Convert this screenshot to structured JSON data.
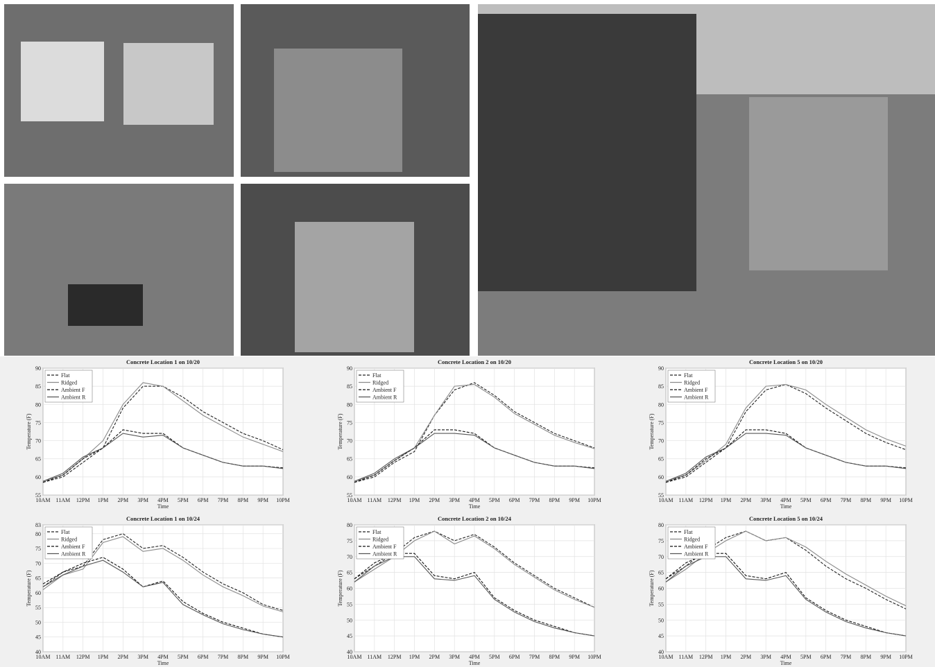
{
  "chart_data": [
    {
      "type": "line",
      "title": "Concrete Location 1 on 10/20",
      "xlabel": "Time",
      "ylabel": "Temperature (F)",
      "grid": true,
      "legend": "upper-left",
      "x": [
        10,
        11,
        12,
        13,
        14,
        15,
        16,
        17,
        18,
        19,
        20,
        21,
        22
      ],
      "xlim": [
        10,
        22
      ],
      "xticks": [
        {
          "value": 10,
          "label": "10AM"
        },
        {
          "value": 11,
          "label": "11AM"
        },
        {
          "value": 12,
          "label": "12PM"
        },
        {
          "value": 13,
          "label": "1PM"
        },
        {
          "value": 14,
          "label": "2PM"
        },
        {
          "value": 15,
          "label": "3PM"
        },
        {
          "value": 16,
          "label": "4PM"
        },
        {
          "value": 17,
          "label": "5PM"
        },
        {
          "value": 18,
          "label": "6PM"
        },
        {
          "value": 19,
          "label": "7PM"
        },
        {
          "value": 20,
          "label": "8PM"
        },
        {
          "value": 21,
          "label": "9PM"
        },
        {
          "value": 22,
          "label": "10PM"
        }
      ],
      "ylim": [
        55,
        90
      ],
      "yticks": [
        55,
        60,
        65,
        70,
        75,
        80,
        85,
        90
      ],
      "series": [
        {
          "name": "Flat",
          "color": "#222222",
          "dash": true,
          "values": [
            58.5,
            60,
            64,
            68,
            79,
            85,
            85,
            82,
            78,
            75,
            72,
            70,
            67.5
          ]
        },
        {
          "name": "Ridged",
          "color": "#8a8a8a",
          "dash": false,
          "values": [
            58.8,
            60.5,
            65,
            70,
            80,
            86,
            85,
            81,
            77,
            74,
            71,
            69,
            67
          ]
        },
        {
          "name": "Ambient F",
          "color": "#111111",
          "dash": true,
          "values": [
            58.5,
            60.5,
            65,
            68,
            73,
            72,
            72,
            68,
            66,
            64,
            63,
            63,
            62.5
          ]
        },
        {
          "name": "Ambient R",
          "color": "#555555",
          "dash": false,
          "values": [
            58.8,
            61,
            65.5,
            68,
            72,
            71,
            71.5,
            68,
            66,
            64,
            63,
            63,
            62.3
          ]
        }
      ]
    },
    {
      "type": "line",
      "title": "Concrete Location 2 on 10/20",
      "xlabel": "Time",
      "ylabel": "Temperature (F)",
      "grid": true,
      "legend": "upper-left",
      "x": [
        10,
        11,
        12,
        13,
        14,
        15,
        16,
        17,
        18,
        19,
        20,
        21,
        22
      ],
      "xlim": [
        10,
        22
      ],
      "xticks": [
        {
          "value": 10,
          "label": "10AM"
        },
        {
          "value": 11,
          "label": "11AM"
        },
        {
          "value": 12,
          "label": "12PM"
        },
        {
          "value": 13,
          "label": "1PM"
        },
        {
          "value": 14,
          "label": "2PM"
        },
        {
          "value": 15,
          "label": "3PM"
        },
        {
          "value": 16,
          "label": "4PM"
        },
        {
          "value": 17,
          "label": "5PM"
        },
        {
          "value": 18,
          "label": "6PM"
        },
        {
          "value": 19,
          "label": "7PM"
        },
        {
          "value": 20,
          "label": "8PM"
        },
        {
          "value": 21,
          "label": "9PM"
        },
        {
          "value": 22,
          "label": "10PM"
        }
      ],
      "ylim": [
        55,
        90
      ],
      "yticks": [
        55,
        60,
        65,
        70,
        75,
        80,
        85,
        90
      ],
      "series": [
        {
          "name": "Flat",
          "color": "#222222",
          "dash": true,
          "values": [
            58.5,
            60,
            64,
            67,
            77,
            84,
            86,
            82.5,
            78,
            75,
            72,
            70,
            68
          ]
        },
        {
          "name": "Ridged",
          "color": "#8a8a8a",
          "dash": false,
          "values": [
            58.8,
            60.5,
            64.5,
            68,
            77,
            85,
            85.5,
            82,
            77.5,
            74.5,
            71.5,
            69.5,
            67.8
          ]
        },
        {
          "name": "Ambient F",
          "color": "#111111",
          "dash": true,
          "values": [
            58.5,
            60.5,
            64.5,
            68,
            73,
            73,
            72,
            68,
            66,
            64,
            63,
            63,
            62.5
          ]
        },
        {
          "name": "Ambient R",
          "color": "#555555",
          "dash": false,
          "values": [
            58.8,
            61,
            65,
            68,
            72,
            72,
            71.5,
            68,
            66,
            64,
            63,
            63,
            62.3
          ]
        }
      ]
    },
    {
      "type": "line",
      "title": "Concrete Location 5 on 10/20",
      "xlabel": "Time",
      "ylabel": "Temperature (F)",
      "grid": true,
      "legend": "upper-left",
      "x": [
        10,
        11,
        12,
        13,
        14,
        15,
        16,
        17,
        18,
        19,
        20,
        21,
        22
      ],
      "xlim": [
        10,
        22
      ],
      "xticks": [
        {
          "value": 10,
          "label": "10AM"
        },
        {
          "value": 11,
          "label": "11AM"
        },
        {
          "value": 12,
          "label": "12PM"
        },
        {
          "value": 13,
          "label": "1PM"
        },
        {
          "value": 14,
          "label": "2PM"
        },
        {
          "value": 15,
          "label": "3PM"
        },
        {
          "value": 16,
          "label": "4PM"
        },
        {
          "value": 17,
          "label": "5PM"
        },
        {
          "value": 18,
          "label": "6PM"
        },
        {
          "value": 19,
          "label": "7PM"
        },
        {
          "value": 20,
          "label": "8PM"
        },
        {
          "value": 21,
          "label": "9PM"
        },
        {
          "value": 22,
          "label": "10PM"
        }
      ],
      "ylim": [
        55,
        90
      ],
      "yticks": [
        55,
        60,
        65,
        70,
        75,
        80,
        85,
        90
      ],
      "series": [
        {
          "name": "Flat",
          "color": "#222222",
          "dash": true,
          "values": [
            58.5,
            60,
            64,
            68,
            78,
            84,
            85.5,
            83,
            79,
            75.5,
            72,
            69.5,
            67.5
          ]
        },
        {
          "name": "Ridged",
          "color": "#8a8a8a",
          "dash": false,
          "values": [
            58.8,
            60.5,
            64.5,
            69,
            79,
            85,
            85.5,
            84,
            80,
            76.5,
            73,
            70.5,
            68.5
          ]
        },
        {
          "name": "Ambient F",
          "color": "#111111",
          "dash": true,
          "values": [
            58.5,
            60.5,
            65,
            68,
            73,
            73,
            72,
            68,
            66,
            64,
            63,
            63,
            62.5
          ]
        },
        {
          "name": "Ambient R",
          "color": "#555555",
          "dash": false,
          "values": [
            58.8,
            61,
            65.5,
            68,
            72,
            72,
            71.5,
            68,
            66,
            64,
            63,
            63,
            62.3
          ]
        }
      ]
    },
    {
      "type": "line",
      "title": "Concrete Location 1 on 10/24",
      "xlabel": "Time",
      "ylabel": "Temperature (F)",
      "grid": true,
      "legend": "upper-left",
      "x": [
        10,
        11,
        12,
        13,
        14,
        15,
        16,
        17,
        18,
        19,
        20,
        21,
        22
      ],
      "xlim": [
        10,
        22
      ],
      "xticks": [
        {
          "value": 10,
          "label": "10AM"
        },
        {
          "value": 11,
          "label": "11AM"
        },
        {
          "value": 12,
          "label": "12PM"
        },
        {
          "value": 13,
          "label": "1PM"
        },
        {
          "value": 14,
          "label": "2PM"
        },
        {
          "value": 15,
          "label": "3PM"
        },
        {
          "value": 16,
          "label": "4PM"
        },
        {
          "value": 17,
          "label": "5PM"
        },
        {
          "value": 18,
          "label": "6PM"
        },
        {
          "value": 19,
          "label": "7PM"
        },
        {
          "value": 20,
          "label": "8PM"
        },
        {
          "value": 21,
          "label": "9PM"
        },
        {
          "value": 22,
          "label": "10PM"
        }
      ],
      "ylim": [
        40,
        83
      ],
      "yticks": [
        40,
        45,
        50,
        55,
        60,
        65,
        70,
        75,
        80,
        83
      ],
      "series": [
        {
          "name": "Flat",
          "color": "#222222",
          "dash": true,
          "values": [
            62,
            67,
            69,
            78,
            80,
            75,
            76,
            72,
            67,
            63,
            60,
            56,
            54
          ]
        },
        {
          "name": "Ridged",
          "color": "#8a8a8a",
          "dash": false,
          "values": [
            61,
            66,
            68,
            77,
            79,
            74,
            75,
            71,
            66,
            62,
            59,
            55.5,
            53.5
          ]
        },
        {
          "name": "Ambient F",
          "color": "#111111",
          "dash": true,
          "values": [
            63,
            67,
            70,
            72,
            68,
            62,
            64,
            57,
            53,
            50,
            48,
            46,
            45
          ]
        },
        {
          "name": "Ambient R",
          "color": "#555555",
          "dash": false,
          "values": [
            62,
            66,
            69,
            71,
            67,
            62,
            63.5,
            56,
            52.5,
            49.5,
            47.5,
            46,
            45
          ]
        }
      ]
    },
    {
      "type": "line",
      "title": "Concrete Location 2 on 10/24",
      "xlabel": "Time",
      "ylabel": "Temperature (F)",
      "grid": true,
      "legend": "upper-left",
      "x": [
        10,
        11,
        12,
        13,
        14,
        15,
        16,
        17,
        18,
        19,
        20,
        21,
        22
      ],
      "xlim": [
        10,
        22
      ],
      "xticks": [
        {
          "value": 10,
          "label": "10AM"
        },
        {
          "value": 11,
          "label": "11AM"
        },
        {
          "value": 12,
          "label": "12PM"
        },
        {
          "value": 13,
          "label": "1PM"
        },
        {
          "value": 14,
          "label": "2PM"
        },
        {
          "value": 15,
          "label": "3PM"
        },
        {
          "value": 16,
          "label": "4PM"
        },
        {
          "value": 17,
          "label": "5PM"
        },
        {
          "value": 18,
          "label": "6PM"
        },
        {
          "value": 19,
          "label": "7PM"
        },
        {
          "value": 20,
          "label": "8PM"
        },
        {
          "value": 21,
          "label": "9PM"
        },
        {
          "value": 22,
          "label": "10PM"
        }
      ],
      "ylim": [
        40,
        80
      ],
      "yticks": [
        40,
        45,
        50,
        55,
        60,
        65,
        70,
        75,
        80
      ],
      "series": [
        {
          "name": "Flat",
          "color": "#222222",
          "dash": true,
          "values": [
            63,
            67,
            71,
            76,
            78,
            75,
            77,
            73,
            68,
            64,
            60,
            57,
            54
          ]
        },
        {
          "name": "Ridged",
          "color": "#8a8a8a",
          "dash": false,
          "values": [
            62,
            66,
            70,
            75,
            78,
            74,
            76.5,
            72.5,
            67.5,
            63.5,
            59.5,
            56.5,
            54
          ]
        },
        {
          "name": "Ambient F",
          "color": "#111111",
          "dash": true,
          "values": [
            63,
            68,
            71,
            71,
            64,
            63,
            65,
            57,
            53,
            50,
            48,
            46,
            45
          ]
        },
        {
          "name": "Ambient R",
          "color": "#555555",
          "dash": false,
          "values": [
            62,
            67,
            70,
            70,
            63,
            62.5,
            64,
            56.5,
            52.5,
            49.5,
            47.5,
            46,
            45
          ]
        }
      ]
    },
    {
      "type": "line",
      "title": "Concrete Location 5 on 10/24",
      "xlabel": "Time",
      "ylabel": "Temperature (F)",
      "grid": true,
      "legend": "upper-left",
      "x": [
        10,
        11,
        12,
        13,
        14,
        15,
        16,
        17,
        18,
        19,
        20,
        21,
        22
      ],
      "xlim": [
        10,
        22
      ],
      "xticks": [
        {
          "value": 10,
          "label": "10AM"
        },
        {
          "value": 11,
          "label": "11AM"
        },
        {
          "value": 12,
          "label": "12PM"
        },
        {
          "value": 13,
          "label": "1PM"
        },
        {
          "value": 14,
          "label": "2PM"
        },
        {
          "value": 15,
          "label": "3PM"
        },
        {
          "value": 16,
          "label": "4PM"
        },
        {
          "value": 17,
          "label": "5PM"
        },
        {
          "value": 18,
          "label": "6PM"
        },
        {
          "value": 19,
          "label": "7PM"
        },
        {
          "value": 20,
          "label": "8PM"
        },
        {
          "value": 21,
          "label": "9PM"
        },
        {
          "value": 22,
          "label": "10PM"
        }
      ],
      "ylim": [
        40,
        80
      ],
      "yticks": [
        40,
        45,
        50,
        55,
        60,
        65,
        70,
        75,
        80
      ],
      "series": [
        {
          "name": "Flat",
          "color": "#222222",
          "dash": true,
          "values": [
            63,
            67,
            72,
            76,
            78,
            75,
            76,
            72,
            67,
            63,
            60,
            56.5,
            53.5
          ]
        },
        {
          "name": "Ridged",
          "color": "#8a8a8a",
          "dash": false,
          "values": [
            62,
            66,
            71,
            75,
            78,
            75,
            76,
            73,
            68.5,
            64.5,
            61,
            57.5,
            54.5
          ]
        },
        {
          "name": "Ambient F",
          "color": "#111111",
          "dash": true,
          "values": [
            63,
            68,
            71,
            71,
            64,
            63,
            65,
            57,
            53,
            50,
            48,
            46,
            45
          ]
        },
        {
          "name": "Ambient R",
          "color": "#555555",
          "dash": false,
          "values": [
            62,
            67,
            70,
            70,
            63,
            62.5,
            64,
            56.5,
            52.5,
            49.5,
            47.5,
            46,
            45
          ]
        }
      ]
    }
  ]
}
